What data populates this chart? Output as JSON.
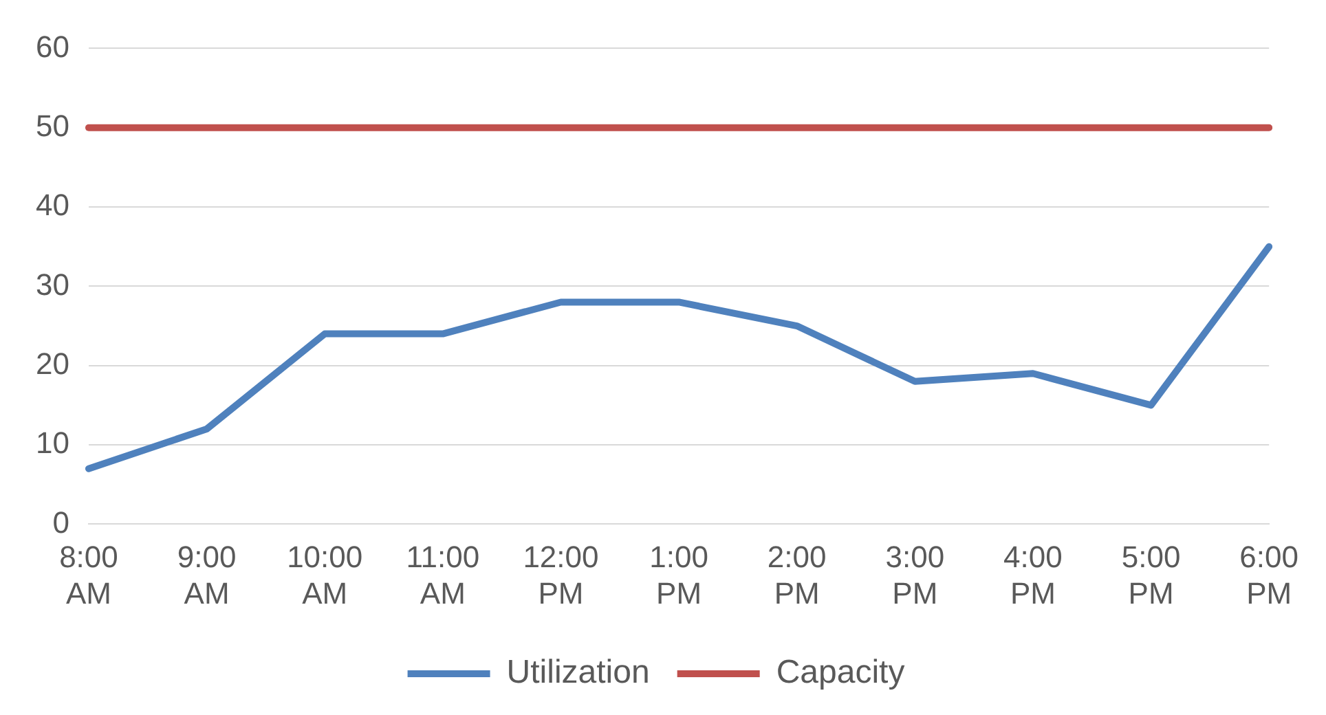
{
  "chart_data": {
    "type": "line",
    "categories": [
      "8:00 AM",
      "9:00 AM",
      "10:00 AM",
      "11:00 AM",
      "12:00 PM",
      "1:00 PM",
      "2:00 PM",
      "3:00 PM",
      "4:00 PM",
      "5:00 PM",
      "6:00 PM"
    ],
    "series": [
      {
        "name": "Utilization",
        "color": "#4f81bd",
        "values": [
          7,
          12,
          24,
          24,
          28,
          28,
          25,
          18,
          19,
          15,
          35
        ]
      },
      {
        "name": "Capacity",
        "color": "#c0504d",
        "values": [
          50,
          50,
          50,
          50,
          50,
          50,
          50,
          50,
          50,
          50,
          50
        ]
      }
    ],
    "ylim": [
      0,
      60
    ],
    "yticks": [
      0,
      10,
      20,
      30,
      40,
      50,
      60
    ],
    "grid": "y",
    "legend": "bottom",
    "marker": "none",
    "line_style": "solid"
  }
}
